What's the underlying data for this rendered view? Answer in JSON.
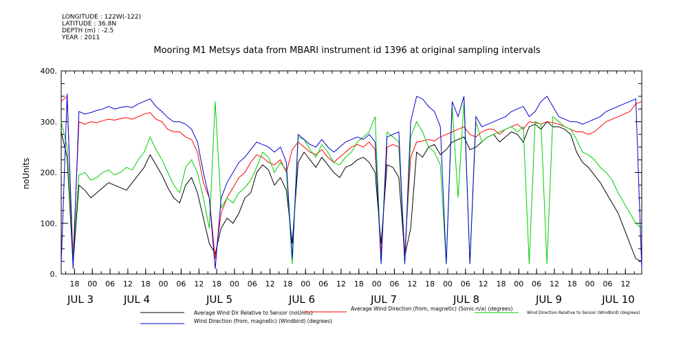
{
  "meta": {
    "longitude": "LONGITUDE : 122W(-122)",
    "latitude": "LATITUDE : 36.8N",
    "depth": "DEPTH (m) : -2.5",
    "year": "YEAR : 2011"
  },
  "chart_data": {
    "type": "line",
    "title": "Mooring M1 Metsys data from MBARI instrument id 1396 at original sampling intervals",
    "ylabel": "noUnits",
    "ylim": [
      0,
      400
    ],
    "yticks": [
      0,
      100,
      200,
      300,
      400
    ],
    "ytick_labels": [
      "0.",
      "100.",
      "200.",
      "300.",
      "400."
    ],
    "xlim_hours": [
      0,
      196
    ],
    "hour_ticks": [
      "18",
      "00",
      "06",
      "12",
      "18",
      "00",
      "06",
      "12",
      "18",
      "00",
      "06",
      "12",
      "18",
      "00",
      "06",
      "12",
      "18",
      "00",
      "06",
      "12",
      "18",
      "00",
      "06",
      "12",
      "18",
      "00",
      "06",
      "12",
      "18",
      "00",
      "06",
      "12"
    ],
    "day_labels": [
      "JUL  3",
      "JUL  4",
      "JUL  5",
      "JUL  6",
      "JUL  7",
      "JUL  8",
      "JUL  9",
      "JUL 10"
    ],
    "grid": false,
    "series": [
      {
        "name": "Average Wind Dir Relative to Sensor (noUnits)",
        "color": "#000000",
        "x": [
          0,
          2,
          4,
          6,
          8,
          10,
          12,
          14,
          16,
          18,
          20,
          22,
          24,
          26,
          28,
          30,
          32,
          34,
          36,
          38,
          40,
          42,
          44,
          46,
          48,
          50,
          52,
          54,
          56,
          58,
          60,
          62,
          64,
          66,
          68,
          70,
          72,
          74,
          76,
          78,
          80,
          82,
          84,
          86,
          88,
          90,
          92,
          94,
          96,
          98,
          100,
          102,
          104,
          106,
          108,
          110,
          112,
          114,
          116,
          118,
          120,
          122,
          124,
          126,
          128,
          130,
          132,
          134,
          136,
          138,
          140,
          142,
          144,
          146,
          148,
          150,
          152,
          154,
          156,
          158,
          160,
          162,
          164,
          166,
          168,
          170,
          172,
          174,
          176,
          178,
          180,
          182,
          184,
          186,
          188,
          190,
          192,
          194,
          196
        ],
        "y": [
          280,
          230,
          20,
          175,
          165,
          150,
          160,
          170,
          180,
          175,
          170,
          165,
          180,
          195,
          210,
          235,
          215,
          195,
          170,
          150,
          140,
          175,
          190,
          160,
          110,
          60,
          40,
          90,
          110,
          100,
          120,
          150,
          160,
          200,
          215,
          205,
          175,
          190,
          165,
          60,
          220,
          240,
          225,
          210,
          230,
          215,
          200,
          190,
          210,
          215,
          225,
          230,
          220,
          200,
          60,
          215,
          210,
          190,
          35,
          90,
          240,
          230,
          250,
          255,
          235,
          245,
          260,
          265,
          270,
          245,
          250,
          260,
          270,
          275,
          260,
          270,
          280,
          275,
          260,
          290,
          295,
          285,
          300,
          290,
          290,
          285,
          275,
          240,
          220,
          210,
          195,
          180,
          160,
          140,
          120,
          90,
          60,
          30,
          25
        ]
      },
      {
        "name": "Average Wind Direction (from, magnetic) (Sonic-n/a) (degrees)",
        "color": "#ff0000",
        "x": [
          0,
          2,
          4,
          6,
          8,
          10,
          12,
          14,
          16,
          18,
          20,
          22,
          24,
          26,
          28,
          30,
          32,
          34,
          36,
          38,
          40,
          42,
          44,
          46,
          48,
          50,
          52,
          54,
          56,
          58,
          60,
          62,
          64,
          66,
          68,
          70,
          72,
          74,
          76,
          78,
          80,
          82,
          84,
          86,
          88,
          90,
          92,
          94,
          96,
          98,
          100,
          102,
          104,
          106,
          108,
          110,
          112,
          114,
          116,
          118,
          120,
          122,
          124,
          126,
          128,
          130,
          132,
          134,
          136,
          138,
          140,
          142,
          144,
          146,
          148,
          150,
          152,
          154,
          156,
          158,
          160,
          162,
          164,
          166,
          168,
          170,
          172,
          174,
          176,
          178,
          180,
          182,
          184,
          186,
          188,
          190,
          192,
          194,
          196
        ],
        "y": [
          340,
          350,
          30,
          300,
          295,
          300,
          298,
          302,
          305,
          303,
          306,
          308,
          305,
          310,
          315,
          318,
          305,
          300,
          285,
          280,
          280,
          270,
          265,
          240,
          180,
          150,
          30,
          120,
          150,
          170,
          190,
          200,
          220,
          235,
          230,
          220,
          215,
          225,
          200,
          245,
          260,
          250,
          240,
          235,
          245,
          230,
          220,
          230,
          240,
          250,
          255,
          250,
          260,
          245,
          40,
          250,
          255,
          250,
          40,
          230,
          260,
          262,
          265,
          262,
          270,
          275,
          280,
          285,
          290,
          275,
          270,
          280,
          285,
          285,
          275,
          285,
          290,
          295,
          285,
          300,
          298,
          295,
          300,
          298,
          295,
          290,
          285,
          280,
          280,
          275,
          280,
          290,
          300,
          305,
          310,
          315,
          320,
          335,
          340
        ]
      },
      {
        "name": "Wind Direction Relative to Sensor (Windbird) (degrees)",
        "color": "#00cc00",
        "x": [
          0,
          2,
          4,
          6,
          8,
          10,
          12,
          14,
          16,
          18,
          20,
          22,
          24,
          26,
          28,
          30,
          32,
          34,
          36,
          38,
          40,
          42,
          44,
          46,
          48,
          50,
          52,
          54,
          56,
          58,
          60,
          62,
          64,
          66,
          68,
          70,
          72,
          74,
          76,
          78,
          80,
          82,
          84,
          86,
          88,
          90,
          92,
          94,
          96,
          98,
          100,
          102,
          104,
          106,
          108,
          110,
          112,
          114,
          116,
          118,
          120,
          122,
          124,
          126,
          128,
          130,
          132,
          134,
          136,
          138,
          140,
          142,
          144,
          146,
          148,
          150,
          152,
          154,
          156,
          158,
          160,
          162,
          164,
          166,
          168,
          170,
          172,
          174,
          176,
          178,
          180,
          182,
          184,
          186,
          188,
          190,
          192,
          194,
          196
        ],
        "y": [
          300,
          250,
          30,
          195,
          200,
          185,
          190,
          200,
          205,
          195,
          200,
          210,
          205,
          225,
          240,
          270,
          245,
          225,
          200,
          175,
          160,
          210,
          225,
          200,
          150,
          90,
          340,
          130,
          150,
          140,
          160,
          170,
          185,
          210,
          240,
          230,
          200,
          220,
          205,
          20,
          270,
          265,
          245,
          230,
          255,
          240,
          220,
          215,
          230,
          240,
          260,
          270,
          280,
          310,
          20,
          280,
          270,
          260,
          20,
          270,
          300,
          280,
          250,
          240,
          215,
          20,
          330,
          150,
          340,
          20,
          300,
          260,
          270,
          275,
          280,
          285,
          290,
          280,
          290,
          20,
          300,
          295,
          20,
          310,
          300,
          290,
          285,
          265,
          240,
          235,
          225,
          210,
          200,
          185,
          160,
          140,
          120,
          100,
          90
        ]
      },
      {
        "name": "Wind Direction (from, magnetic) (Windbird) (degrees)",
        "color": "#0000cc",
        "x": [
          0,
          2,
          4,
          6,
          8,
          10,
          12,
          14,
          16,
          18,
          20,
          22,
          24,
          26,
          28,
          30,
          32,
          34,
          36,
          38,
          40,
          42,
          44,
          46,
          48,
          50,
          52,
          54,
          56,
          58,
          60,
          62,
          64,
          66,
          68,
          70,
          72,
          74,
          76,
          78,
          80,
          82,
          84,
          86,
          88,
          90,
          92,
          94,
          96,
          98,
          100,
          102,
          104,
          106,
          108,
          110,
          112,
          114,
          116,
          118,
          120,
          122,
          124,
          126,
          128,
          130,
          132,
          134,
          136,
          138,
          140,
          142,
          144,
          146,
          148,
          150,
          152,
          154,
          156,
          158,
          160,
          162,
          164,
          166,
          168,
          170,
          172,
          174,
          176,
          178,
          180,
          182,
          184,
          186,
          188,
          190,
          192,
          194,
          196
        ],
        "y": [
          20,
          355,
          10,
          320,
          315,
          318,
          322,
          325,
          330,
          325,
          328,
          330,
          328,
          335,
          340,
          345,
          330,
          320,
          308,
          300,
          300,
          295,
          285,
          260,
          200,
          150,
          10,
          150,
          180,
          200,
          220,
          230,
          245,
          260,
          255,
          250,
          240,
          250,
          220,
          30,
          275,
          265,
          255,
          250,
          265,
          250,
          240,
          250,
          260,
          265,
          270,
          265,
          275,
          260,
          20,
          270,
          275,
          280,
          20,
          300,
          350,
          345,
          330,
          320,
          290,
          20,
          340,
          310,
          350,
          20,
          310,
          290,
          295,
          300,
          305,
          310,
          320,
          325,
          330,
          310,
          320,
          340,
          350,
          330,
          310,
          305,
          300,
          300,
          295,
          300,
          305,
          310,
          320,
          325,
          330,
          335,
          340,
          345,
          10
        ]
      }
    ]
  }
}
